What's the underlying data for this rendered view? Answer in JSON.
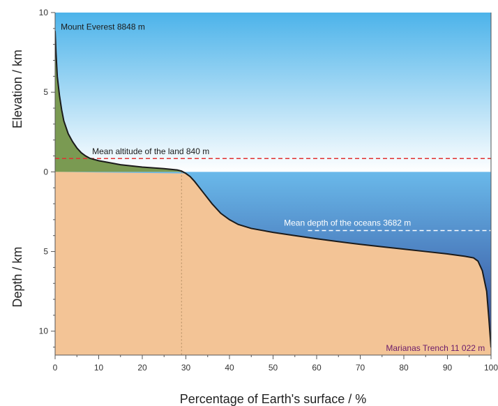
{
  "colors": {
    "sky_top": "#4cb3ea",
    "sky_bottom": "#ffffff",
    "ocean_top": "#6ab9ea",
    "ocean_bottom": "#2a3d8f",
    "land_above": "#7a9a52",
    "land_below": "#f3c496",
    "curve": "#1a1a1a",
    "mean_land_line": "#e03030",
    "mean_ocean_line": "#ffffff",
    "annot_default": "#1a1a1a",
    "annot_ocean": "#ffffff",
    "annot_trench": "#6a1a6a"
  },
  "chart_data": {
    "type": "area",
    "xlabel": "Percentage of Earth's surface / %",
    "ylabel_top": "Elevation / km",
    "ylabel_bottom": "Depth / km",
    "xlim": [
      0,
      100
    ],
    "ylim": [
      -11.5,
      10
    ],
    "xticks": [
      "0",
      "10",
      "20",
      "30",
      "40",
      "50",
      "60",
      "70",
      "80",
      "90",
      "100"
    ],
    "yticks_top": [
      "10",
      "5",
      "0"
    ],
    "yticks_bottom": [
      "5",
      "10"
    ],
    "hypsometric_curve": {
      "x": [
        0,
        0.2,
        0.5,
        1,
        1.5,
        2,
        3,
        4,
        5,
        6,
        7,
        8,
        10,
        12,
        15,
        20,
        25,
        28,
        29,
        30,
        31,
        32,
        34,
        36,
        38,
        40,
        42,
        45,
        50,
        55,
        60,
        65,
        70,
        75,
        80,
        85,
        90,
        94,
        96,
        97,
        98,
        99,
        99.5,
        100
      ],
      "y": [
        8.848,
        7.5,
        6.0,
        4.8,
        3.9,
        3.2,
        2.4,
        1.9,
        1.5,
        1.2,
        1.0,
        0.85,
        0.7,
        0.6,
        0.45,
        0.3,
        0.2,
        0.12,
        0.05,
        -0.1,
        -0.3,
        -0.6,
        -1.3,
        -2.0,
        -2.6,
        -3.0,
        -3.3,
        -3.55,
        -3.8,
        -4.0,
        -4.2,
        -4.38,
        -4.55,
        -4.7,
        -4.85,
        -5.0,
        -5.15,
        -5.3,
        -5.4,
        -5.6,
        -6.2,
        -7.5,
        -9.2,
        -11.022
      ]
    },
    "reference_x": 29,
    "annotations": {
      "everest": {
        "text": "Mount Everest 8848 m",
        "value": 8.848
      },
      "mean_land": {
        "text": "Mean altitude of the land 840 m",
        "value": 0.84
      },
      "mean_ocean": {
        "text": "Mean depth of the oceans 3682 m",
        "value": -3.682
      },
      "trench": {
        "text": "Marianas Trench 11 022 m",
        "value": -11.022
      }
    }
  }
}
